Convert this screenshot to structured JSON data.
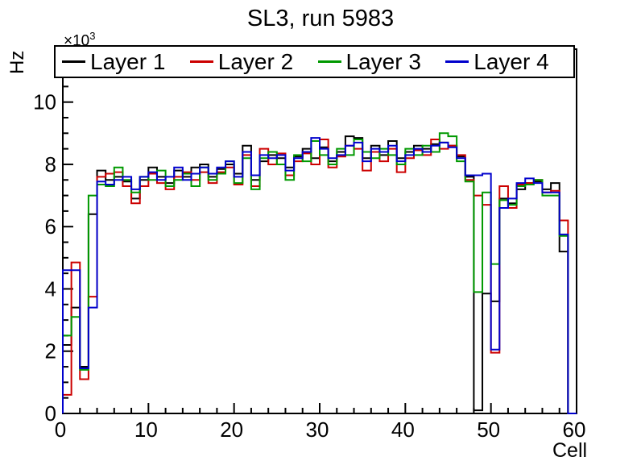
{
  "title": "SL3, run 5983",
  "y_axis": {
    "title": "Hz",
    "power_base": "×10",
    "power_exp": "3",
    "major_ticks": [
      0,
      2,
      4,
      6,
      8,
      10
    ],
    "minor_step": 0.5,
    "max": 11.7
  },
  "x_axis": {
    "title": "Cell",
    "major_ticks": [
      0,
      10,
      20,
      30,
      40,
      50,
      60
    ],
    "minor_step": 2,
    "max": 60
  },
  "legend": {
    "entries": [
      {
        "label": "Layer 1",
        "color": "#000000"
      },
      {
        "label": "Layer 2",
        "color": "#cc0000"
      },
      {
        "label": "Layer 3",
        "color": "#009900"
      },
      {
        "label": "Layer 4",
        "color": "#0000cc"
      }
    ]
  },
  "chart_data": {
    "type": "step-histogram",
    "title": "SL3, run 5983",
    "xlabel": "Cell",
    "ylabel": "Hz",
    "y_scale_label": "×10³",
    "x_bins": 60,
    "x_range": [
      0,
      60
    ],
    "ylim": [
      0,
      11.7
    ],
    "legend_position": "top-full-width",
    "grid": false,
    "series": [
      {
        "name": "Layer 1",
        "color": "#000000",
        "values": [
          2.2,
          3.4,
          1.5,
          6.4,
          7.8,
          7.5,
          7.6,
          7.45,
          6.9,
          7.5,
          7.9,
          7.6,
          7.4,
          7.8,
          7.6,
          7.9,
          8.0,
          7.6,
          7.85,
          8.0,
          7.7,
          8.6,
          7.5,
          8.1,
          8.3,
          8.2,
          7.9,
          8.25,
          8.5,
          8.2,
          8.55,
          8.1,
          8.4,
          8.9,
          8.85,
          8.2,
          8.6,
          8.3,
          8.75,
          8.2,
          8.4,
          8.6,
          8.5,
          8.65,
          8.7,
          8.6,
          8.25,
          7.6,
          0.1,
          3.85,
          3.6,
          6.9,
          6.75,
          7.2,
          7.4,
          7.45,
          7.2,
          7.4,
          5.2,
          0
        ]
      },
      {
        "name": "Layer 2",
        "color": "#cc0000",
        "values": [
          0.6,
          4.85,
          1.1,
          3.75,
          7.6,
          7.7,
          7.75,
          7.3,
          6.75,
          7.3,
          7.7,
          7.4,
          7.2,
          7.6,
          7.75,
          7.5,
          7.75,
          7.4,
          7.75,
          7.9,
          7.35,
          8.3,
          7.3,
          8.5,
          8.0,
          8.35,
          7.65,
          8.1,
          8.35,
          8.0,
          8.8,
          7.9,
          8.25,
          8.6,
          8.5,
          7.8,
          8.4,
          8.1,
          8.5,
          7.75,
          8.2,
          8.45,
          8.3,
          8.8,
          8.5,
          8.6,
          8.3,
          7.5,
          7.0,
          6.7,
          1.95,
          7.3,
          6.6,
          7.35,
          7.4,
          7.5,
          7.1,
          7.15,
          6.2,
          0
        ]
      },
      {
        "name": "Layer 3",
        "color": "#009900",
        "values": [
          2.5,
          3.1,
          1.4,
          7.0,
          7.35,
          7.3,
          7.9,
          7.5,
          7.1,
          7.6,
          7.5,
          7.8,
          7.3,
          7.5,
          7.7,
          7.3,
          7.9,
          7.5,
          7.7,
          8.1,
          7.4,
          8.2,
          7.2,
          8.2,
          8.4,
          8.0,
          7.5,
          8.3,
          8.1,
          8.75,
          8.3,
          8.0,
          8.5,
          8.3,
          8.8,
          8.4,
          8.2,
          8.5,
          8.3,
          8.0,
          8.5,
          8.3,
          8.6,
          8.4,
          9.0,
          8.9,
          8.1,
          7.45,
          3.9,
          7.1,
          4.8,
          6.85,
          6.7,
          7.3,
          7.35,
          7.5,
          7.0,
          7.0,
          5.7,
          0
        ]
      },
      {
        "name": "Layer 4",
        "color": "#0000cc",
        "values": [
          4.6,
          4.6,
          1.45,
          3.4,
          7.45,
          7.35,
          7.5,
          7.6,
          7.2,
          7.6,
          7.75,
          7.5,
          7.6,
          7.9,
          7.5,
          7.7,
          7.9,
          7.7,
          7.9,
          8.1,
          7.6,
          8.4,
          7.65,
          8.3,
          8.2,
          8.3,
          7.8,
          8.2,
          8.4,
          8.85,
          8.5,
          8.2,
          8.3,
          8.6,
          8.7,
          8.1,
          8.5,
          8.4,
          8.6,
          8.1,
          8.3,
          8.5,
          8.4,
          8.6,
          8.7,
          8.55,
          8.2,
          7.65,
          7.65,
          7.7,
          2.05,
          6.6,
          6.9,
          7.4,
          7.55,
          7.4,
          7.1,
          7.1,
          5.75,
          0
        ]
      }
    ]
  }
}
